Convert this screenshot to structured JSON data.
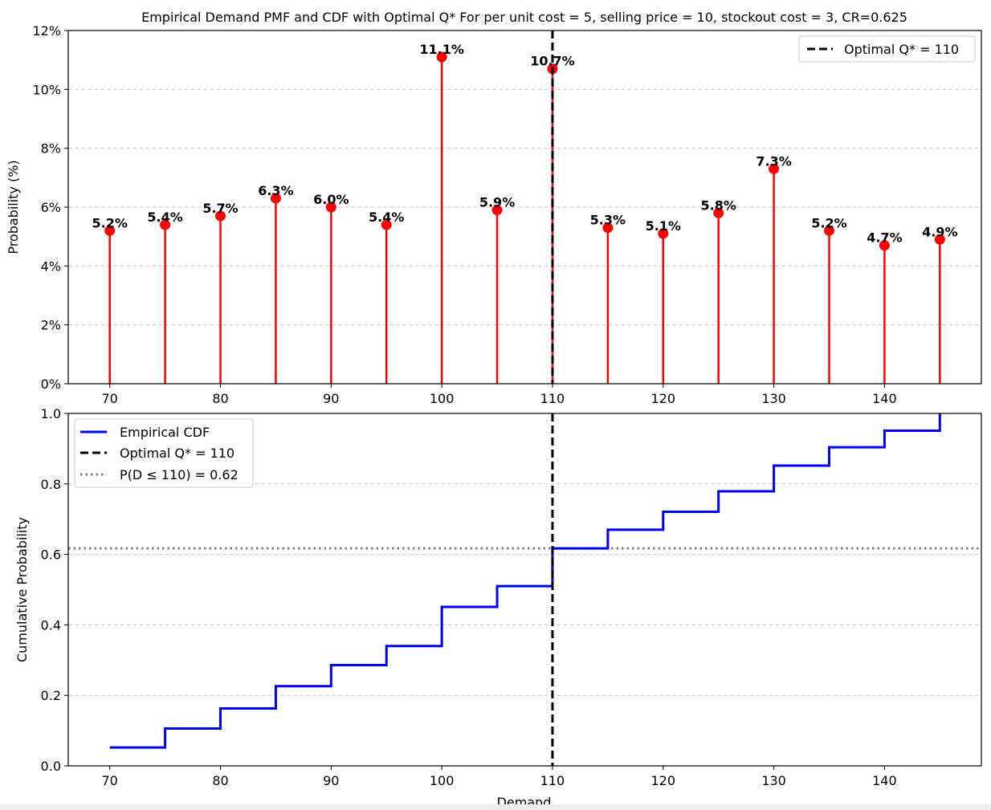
{
  "chart_data": [
    {
      "type": "stem",
      "title": "Empirical Demand PMF and CDF with Optimal Q* For per unit cost = 5, selling price = 10, stockout cost = 3, CR=0.625",
      "xlabel": "",
      "ylabel": "Probability (%)",
      "xlim": [
        66.25,
        148.75
      ],
      "ylim": [
        0,
        12
      ],
      "x_ticks": [
        70,
        80,
        90,
        100,
        110,
        120,
        130,
        140
      ],
      "y_ticks": [
        0,
        2,
        4,
        6,
        8,
        10,
        12
      ],
      "y_tick_format": "percent",
      "grid": "y-dashed",
      "legend_position": "top-right",
      "colors": {
        "stem": "#ff0000",
        "optimal": "#000000"
      },
      "x": [
        70,
        75,
        80,
        85,
        90,
        95,
        100,
        105,
        110,
        115,
        120,
        125,
        130,
        135,
        140,
        145
      ],
      "values": [
        5.2,
        5.4,
        5.7,
        6.3,
        6.0,
        5.4,
        11.1,
        5.9,
        10.7,
        5.3,
        5.1,
        5.8,
        7.3,
        5.2,
        4.7,
        4.9
      ],
      "data_labels": [
        "5.2%",
        "5.4%",
        "5.7%",
        "6.3%",
        "6.0%",
        "5.4%",
        "11.1%",
        "5.9%",
        "10.7%",
        "5.3%",
        "5.1%",
        "5.8%",
        "7.3%",
        "5.2%",
        "4.7%",
        "4.9%"
      ],
      "optimal_q": 110,
      "legend": [
        "Optimal Q* = 110"
      ]
    },
    {
      "type": "step",
      "title": "",
      "xlabel": "Demand",
      "ylabel": "Cumulative Probability",
      "xlim": [
        66.25,
        148.75
      ],
      "ylim": [
        0,
        1
      ],
      "x_ticks": [
        70,
        80,
        90,
        100,
        110,
        120,
        130,
        140
      ],
      "y_ticks": [
        0.0,
        0.2,
        0.4,
        0.6,
        0.8,
        1.0
      ],
      "y_tick_labels": [
        "0.0",
        "0.2",
        "0.4",
        "0.6",
        "0.8",
        "1.0"
      ],
      "grid": "y-dashed",
      "legend_position": "top-left",
      "colors": {
        "cdf": "#0000ee",
        "optimal": "#000000",
        "reference": "#808080"
      },
      "x": [
        70,
        75,
        80,
        85,
        90,
        95,
        100,
        105,
        110,
        115,
        120,
        125,
        130,
        135,
        140,
        145
      ],
      "values": [
        0.052,
        0.106,
        0.163,
        0.226,
        0.286,
        0.34,
        0.451,
        0.51,
        0.617,
        0.67,
        0.721,
        0.779,
        0.852,
        0.904,
        0.951,
        1.0
      ],
      "optimal_q": 110,
      "reference_y": 0.617,
      "legend": [
        "Empirical CDF",
        "Optimal Q* = 110",
        "P(D ≤ 110) = 0.62"
      ]
    }
  ]
}
